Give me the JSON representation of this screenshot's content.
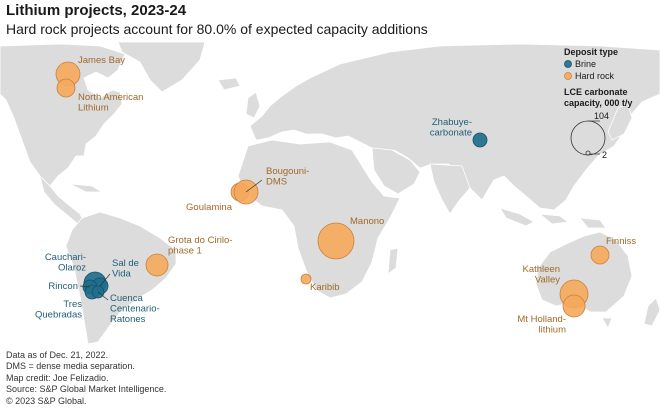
{
  "title": "Lithium projects, 2023-24",
  "subtitle": "Hard rock projects account for 80.0% of expected capacity additions",
  "legend": {
    "deposit_heading": "Deposit type",
    "brine_label": "Brine",
    "hardrock_label": "Hard rock",
    "capacity_heading_1": "LCE carbonate",
    "capacity_heading_2": "capacity, 000 t/y",
    "size_large": "104",
    "size_small": "2"
  },
  "colors": {
    "brine": "#1f6e8c",
    "hard_rock": "#f5a95b",
    "brine_label": "#1f5e78",
    "hard_rock_label": "#a0692a",
    "land": "#dcdcdc",
    "water": "#ffffff"
  },
  "projects": [
    {
      "name_lines": [
        "James Bay"
      ],
      "type": "Hard rock"
    },
    {
      "name_lines": [
        "North American",
        "Lithium"
      ],
      "type": "Hard rock"
    },
    {
      "name_lines": [
        "Zhabuye-",
        "carbonate"
      ],
      "type": "Brine"
    },
    {
      "name_lines": [
        "Bougouni-",
        "DMS"
      ],
      "type": "Hard rock"
    },
    {
      "name_lines": [
        "Goulamina"
      ],
      "type": "Hard rock"
    },
    {
      "name_lines": [
        "Manono"
      ],
      "type": "Hard rock"
    },
    {
      "name_lines": [
        "Grota do Cirilo-",
        "phase 1"
      ],
      "type": "Hard rock"
    },
    {
      "name_lines": [
        "Karibib"
      ],
      "type": "Hard rock"
    },
    {
      "name_lines": [
        "Finniss"
      ],
      "type": "Hard rock"
    },
    {
      "name_lines": [
        "Kathleen",
        "Valley"
      ],
      "type": "Hard rock"
    },
    {
      "name_lines": [
        "Mt Holland-",
        "lithium"
      ],
      "type": "Hard rock"
    },
    {
      "name_lines": [
        "Cauchari-",
        "Olaroz"
      ],
      "type": "Brine"
    },
    {
      "name_lines": [
        "Sal de",
        "Vida"
      ],
      "type": "Brine"
    },
    {
      "name_lines": [
        "Rincon"
      ],
      "type": "Brine"
    },
    {
      "name_lines": [
        "Tres",
        "Quebradas"
      ],
      "type": "Brine"
    },
    {
      "name_lines": [
        "Cuenca",
        "Centenario-",
        "Ratones"
      ],
      "type": "Brine"
    }
  ],
  "footer": [
    "Data as of Dec. 21, 2022.",
    "DMS = dense media separation.",
    "Map credit: Joe Felizadio.",
    "Source: S&P Global Market Intelligence.",
    "© 2023 S&P Global."
  ]
}
